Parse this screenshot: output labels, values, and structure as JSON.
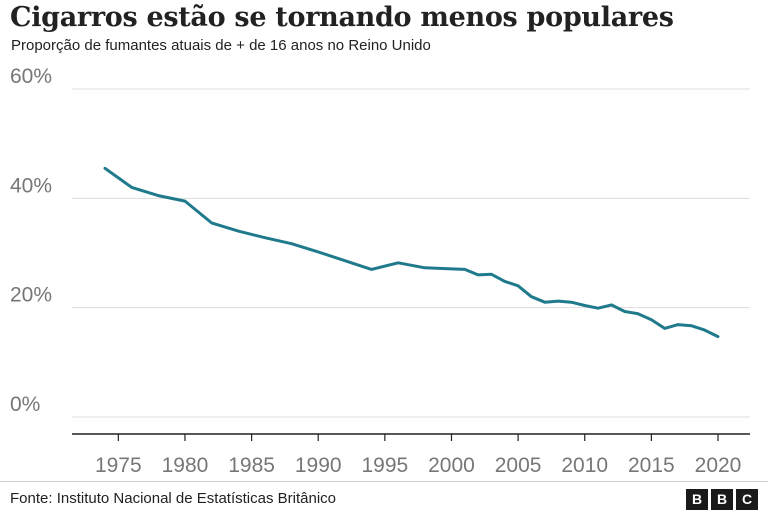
{
  "title": "Cigarros estão se tornando menos populares",
  "subtitle": "Proporção de fumantes atuais de + de 16 anos no Reino Unido",
  "source": "Fonte: Instituto Nacional de Estatísticas Britânico",
  "logo": {
    "letters": [
      "B",
      "B",
      "C"
    ]
  },
  "colors": {
    "line": "#1f7a8c",
    "grid": "#dddddd",
    "axis": "#222222",
    "tick_text": "#777777"
  },
  "chart_data": {
    "type": "line",
    "title": "Cigarros estão se tornando menos populares",
    "subtitle": "Proporção de fumantes atuais de + de 16 anos no Reino Unido",
    "xlabel": "",
    "ylabel": "",
    "xlim": [
      1974,
      2020
    ],
    "ylim": [
      0,
      60
    ],
    "x_ticks": [
      1975,
      1980,
      1985,
      1990,
      1995,
      2000,
      2005,
      2010,
      2015,
      2020
    ],
    "x_tick_labels": [
      "1975",
      "1980",
      "1985",
      "1990",
      "1995",
      "2000",
      "2005",
      "2010",
      "2015",
      "2020"
    ],
    "y_ticks": [
      0,
      20,
      40,
      60
    ],
    "y_tick_labels": [
      "0%",
      "20%",
      "40%",
      "60%"
    ],
    "grid": "horizontal",
    "legend": "none",
    "series": [
      {
        "x": [
          1974,
          1976,
          1978,
          1980,
          1982,
          1984,
          1986,
          1988,
          1990,
          1992,
          1994,
          1996,
          1998,
          2000,
          2001,
          2002,
          2003,
          2004,
          2005,
          2006,
          2007,
          2008,
          2009,
          2010,
          2011,
          2012,
          2013,
          2014,
          2015,
          2016,
          2017,
          2018,
          2019,
          2020
        ],
        "values": [
          45.5,
          42,
          40.5,
          39.5,
          35.5,
          34,
          32.8,
          31.7,
          30.2,
          28.6,
          27,
          28.2,
          27.3,
          27.1,
          27,
          26,
          26.1,
          24.8,
          24,
          22,
          21,
          21.2,
          21,
          20.4,
          19.9,
          20.5,
          19.3,
          18.9,
          17.8,
          16.2,
          16.9,
          16.7,
          15.9,
          14.7
        ]
      }
    ]
  }
}
